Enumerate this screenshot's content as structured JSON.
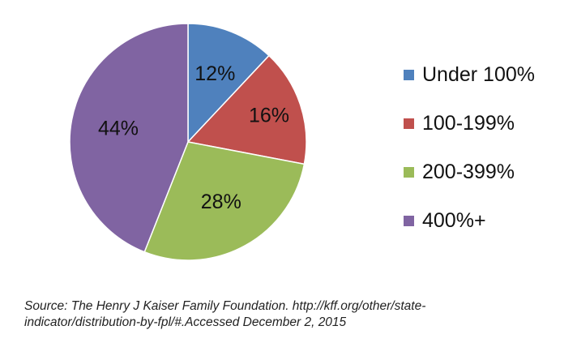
{
  "chart_data": {
    "type": "pie",
    "categories": [
      "Under 100%",
      "100-199%",
      "200-399%",
      "400%+"
    ],
    "values": [
      12,
      16,
      28,
      44
    ],
    "labels": [
      "12%",
      "16%",
      "28%",
      "44%"
    ],
    "colors": [
      "#4F81BD",
      "#C0504D",
      "#9BBB59",
      "#8064A2"
    ],
    "legend_position": "right"
  },
  "legend": {
    "items": [
      {
        "label": "Under 100%",
        "color": "#4F81BD"
      },
      {
        "label": "100-199%",
        "color": "#C0504D"
      },
      {
        "label": "200-399%",
        "color": "#9BBB59"
      },
      {
        "label": "400%+",
        "color": "#8064A2"
      }
    ]
  },
  "source": {
    "line1": "Source: The Henry J Kaiser Family Foundation. http://kff.org/other/state-",
    "line2": "indicator/distribution-by-fpl/#.Accessed December 2, 2015"
  }
}
